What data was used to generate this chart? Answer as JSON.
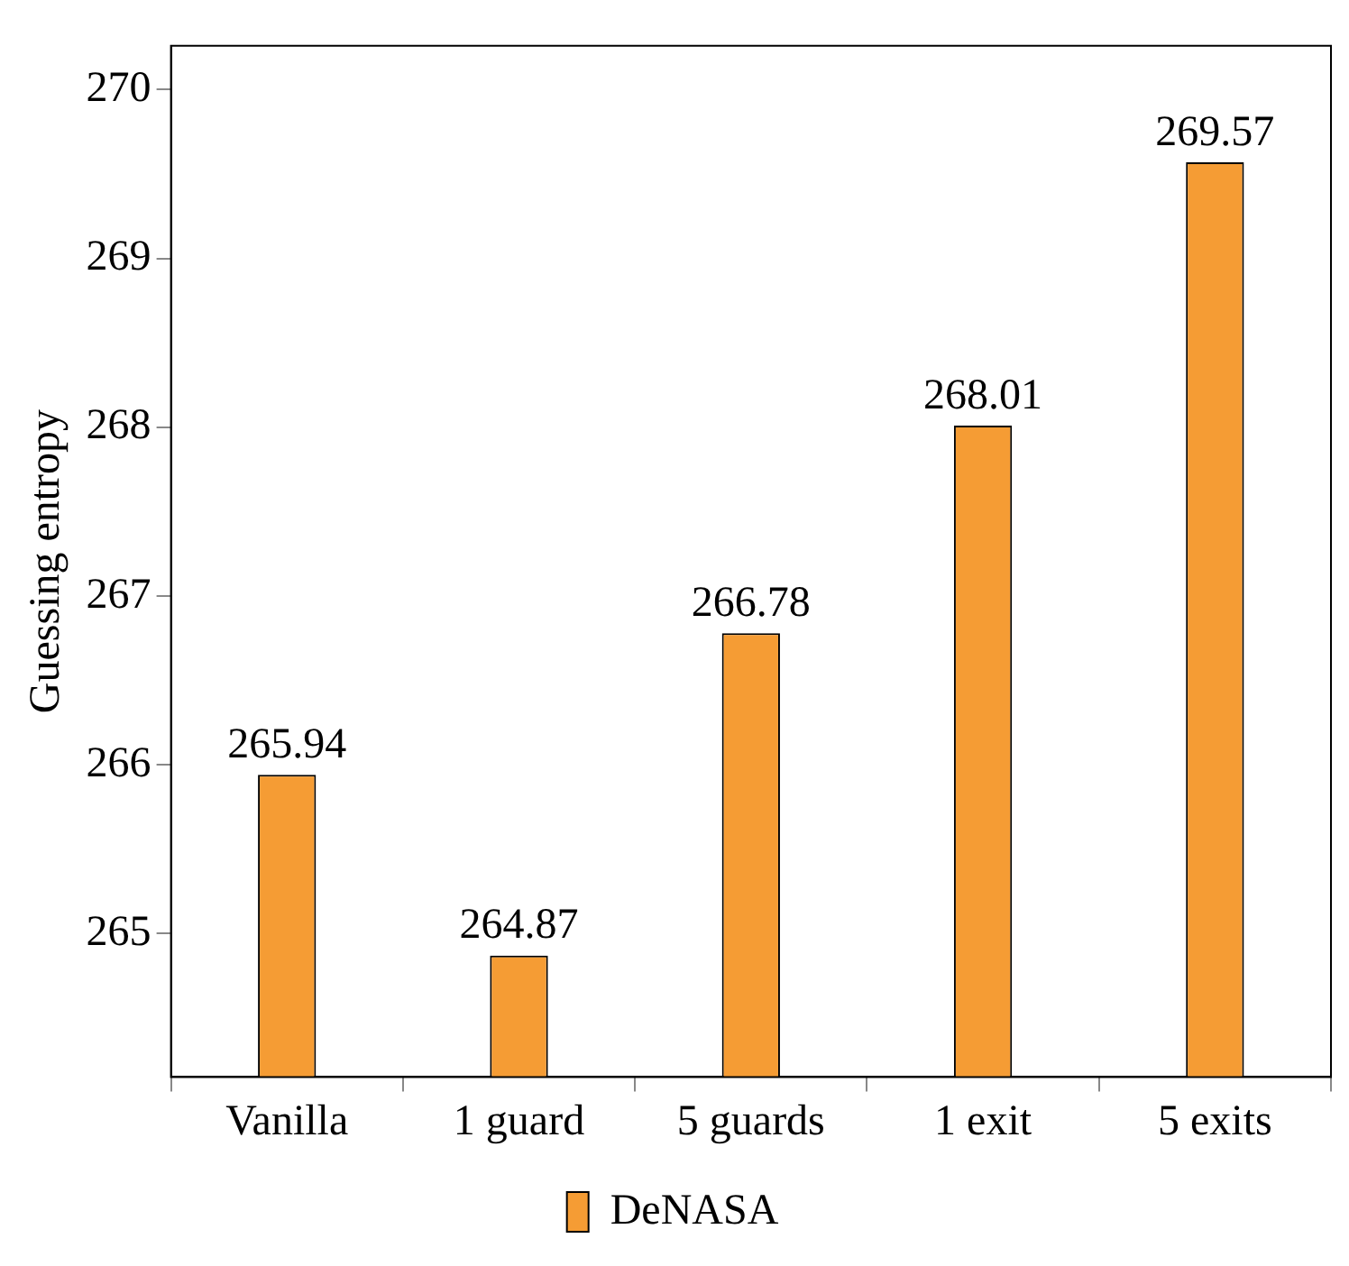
{
  "chart_data": {
    "type": "bar",
    "ylabel": "Guessing entropy",
    "categories": [
      "Vanilla",
      "1 guard",
      "5 guards",
      "1 exit",
      "5 exits"
    ],
    "series": [
      {
        "name": "DeNASA",
        "color": "#f59c34",
        "values": [
          265.94,
          264.87,
          266.78,
          268.01,
          269.57
        ]
      }
    ],
    "ylim": [
      264.15,
      270.26
    ],
    "yticks": [
      265,
      266,
      267,
      268,
      269,
      270
    ],
    "data_labels": true,
    "legend": "bottom"
  }
}
